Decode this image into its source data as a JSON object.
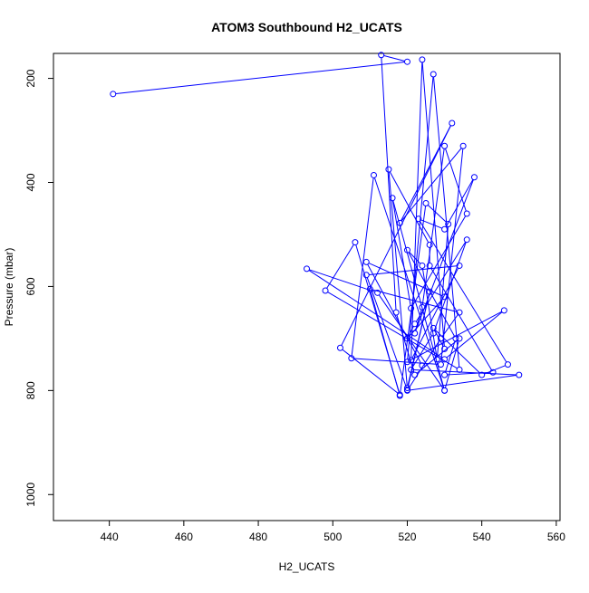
{
  "chart_data": {
    "type": "line",
    "title": "ATOM3 Southbound H2_UCATS",
    "xlabel": "H2_UCATS",
    "ylabel": "Pressure (mbar)",
    "xlim": [
      425,
      561
    ],
    "ylim": [
      1050,
      152
    ],
    "y_reversed": true,
    "grid": false,
    "legend": "none",
    "line_color": "#0000ff",
    "marker": "open-circle",
    "x_ticks": [
      440,
      460,
      480,
      500,
      520,
      540,
      560
    ],
    "y_ticks": [
      200,
      400,
      600,
      800,
      1000
    ],
    "x_tick_labels": [
      "440",
      "460",
      "480",
      "500",
      "520",
      "540",
      "560"
    ],
    "y_tick_labels": [
      "200",
      "400",
      "600",
      "800",
      "1000"
    ],
    "series": [
      {
        "points": [
          [
            441,
            230
          ],
          [
            520,
            168
          ],
          [
            513,
            155
          ],
          [
            517,
            650
          ],
          [
            522,
            770
          ],
          [
            534,
            700
          ],
          [
            530,
            800
          ],
          [
            512,
            612
          ],
          [
            493,
            566
          ],
          [
            530,
            740
          ],
          [
            546,
            646
          ],
          [
            520,
            745
          ],
          [
            527,
            192
          ],
          [
            534,
            760
          ],
          [
            498,
            608
          ],
          [
            506,
            515
          ],
          [
            518,
            808
          ],
          [
            502,
            718
          ],
          [
            532,
            286
          ],
          [
            518,
            478
          ],
          [
            535,
            330
          ],
          [
            529,
            750
          ],
          [
            505,
            738
          ],
          [
            511,
            386
          ],
          [
            530,
            800
          ],
          [
            516,
            430
          ],
          [
            521,
            642
          ],
          [
            536,
            460
          ],
          [
            530,
            330
          ],
          [
            524,
            640
          ],
          [
            522,
            690
          ],
          [
            538,
            390
          ],
          [
            530,
            490
          ],
          [
            523,
            470
          ],
          [
            547,
            750
          ],
          [
            540,
            770
          ],
          [
            527,
            680
          ],
          [
            530,
            720
          ],
          [
            524,
            164
          ],
          [
            521,
            742
          ],
          [
            534,
            560
          ],
          [
            509,
            578
          ],
          [
            520,
            799
          ],
          [
            526,
            610
          ],
          [
            520,
            795
          ],
          [
            515,
            375
          ],
          [
            526,
            520
          ],
          [
            526,
            560
          ],
          [
            543,
            765
          ],
          [
            530,
            770
          ],
          [
            533,
            700
          ],
          [
            520,
            530
          ],
          [
            524,
            560
          ],
          [
            528,
            740
          ],
          [
            531,
            480
          ],
          [
            525,
            440
          ],
          [
            518,
            810
          ],
          [
            510,
            605
          ],
          [
            534,
            650
          ],
          [
            529,
            700
          ],
          [
            520,
            800
          ],
          [
            550,
            770
          ],
          [
            521,
            760
          ],
          [
            527,
            690
          ],
          [
            536,
            510
          ],
          [
            522,
            672
          ],
          [
            520,
            700
          ],
          [
            530,
            620
          ],
          [
            509,
            553
          ],
          [
            524,
            752
          ]
        ]
      }
    ]
  }
}
